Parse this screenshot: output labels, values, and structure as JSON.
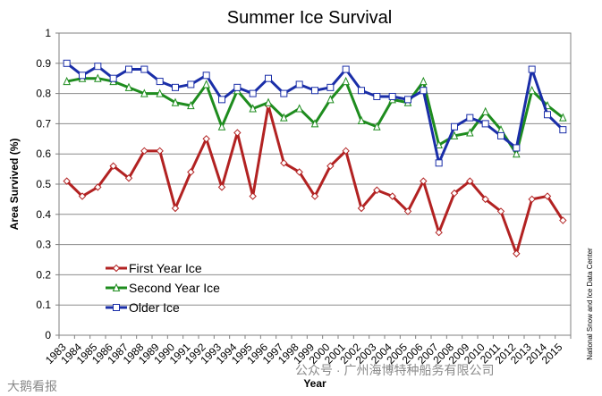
{
  "chart_data": {
    "type": "line",
    "title": "Summer Ice Survival",
    "xlabel": "Year",
    "ylabel": "Area Survived (%)",
    "ylim": [
      0,
      1
    ],
    "yticks": [
      "0",
      "0.1",
      "0.2",
      "0.3",
      "0.4",
      "0.5",
      "0.6",
      "0.7",
      "0.8",
      "0.9",
      "1"
    ],
    "x": [
      "1983",
      "1984",
      "1985",
      "1986",
      "1987",
      "1988",
      "1989",
      "1990",
      "1991",
      "1992",
      "1993",
      "1994",
      "1995",
      "1996",
      "1997",
      "1998",
      "1999",
      "2000",
      "2001",
      "2002",
      "2003",
      "2004",
      "2005",
      "2006",
      "2007",
      "2008",
      "2009",
      "2010",
      "2011",
      "2012",
      "2013",
      "2014",
      "2015"
    ],
    "legend_position": "bottom-left",
    "series": [
      {
        "name": "First Year Ice",
        "color": "#b22222",
        "marker": "diamond",
        "values": [
          0.51,
          0.46,
          0.49,
          0.56,
          0.52,
          0.61,
          0.61,
          0.42,
          0.54,
          0.65,
          0.49,
          0.67,
          0.46,
          0.76,
          0.57,
          0.54,
          0.46,
          0.56,
          0.61,
          0.42,
          0.48,
          0.46,
          0.41,
          0.51,
          0.34,
          0.47,
          0.51,
          0.45,
          0.41,
          0.27,
          0.45,
          0.46,
          0.38
        ]
      },
      {
        "name": "Second Year Ice",
        "color": "#1e8c1e",
        "marker": "triangle",
        "values": [
          0.84,
          0.85,
          0.85,
          0.84,
          0.82,
          0.8,
          0.8,
          0.77,
          0.76,
          0.83,
          0.69,
          0.81,
          0.75,
          0.77,
          0.72,
          0.75,
          0.7,
          0.78,
          0.84,
          0.71,
          0.69,
          0.78,
          0.77,
          0.84,
          0.63,
          0.66,
          0.67,
          0.74,
          0.68,
          0.6,
          0.81,
          0.76,
          0.72
        ]
      },
      {
        "name": "Older Ice",
        "color": "#1a2ea8",
        "marker": "square",
        "values": [
          0.9,
          0.86,
          0.89,
          0.85,
          0.88,
          0.88,
          0.84,
          0.82,
          0.83,
          0.86,
          0.78,
          0.82,
          0.8,
          0.85,
          0.8,
          0.83,
          0.81,
          0.82,
          0.88,
          0.81,
          0.79,
          0.79,
          0.78,
          0.81,
          0.57,
          0.69,
          0.72,
          0.7,
          0.66,
          0.62,
          0.88,
          0.73,
          0.68
        ]
      }
    ]
  },
  "credit": "National Snow and Ice Data Center",
  "watermark_left": "大鹅看报",
  "watermark_center": "公众号 · 广州海博特种船务有限公司"
}
